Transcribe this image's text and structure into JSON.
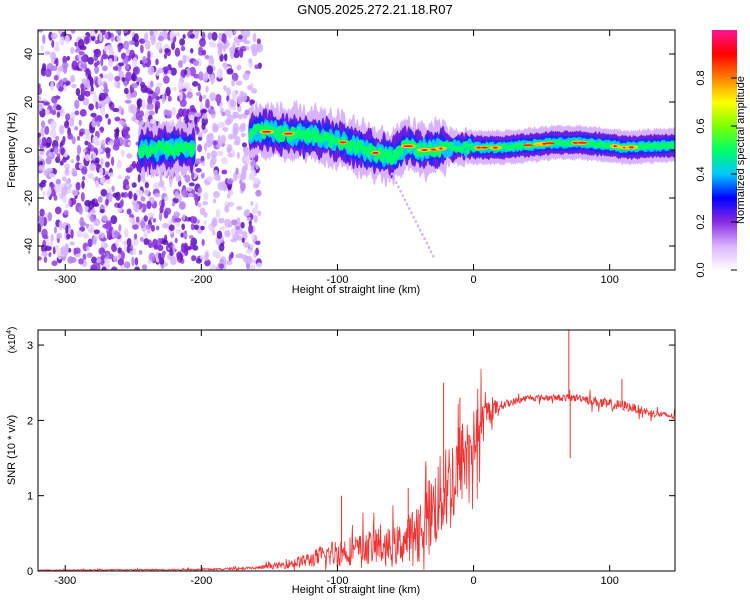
{
  "title": "GN05.2025.272.21.18.R07",
  "colors": {
    "snr_line": "#ee3333",
    "axis": "#000000",
    "noise_purple": "#7a1fd6",
    "background": "#ffffff"
  },
  "chart_data": [
    {
      "type": "heatmap",
      "name": "spectrogram",
      "xlabel": "Height of straight line (km)",
      "ylabel": "Frequency (Hz)",
      "xlim": [
        -320,
        148
      ],
      "ylim": [
        -50,
        50
      ],
      "x_ticks": [
        -300,
        -200,
        -100,
        0,
        100
      ],
      "x_tick_labels": [
        "-300",
        "-200",
        "-100",
        "0",
        "100"
      ],
      "y_ticks": [
        -40,
        -20,
        0,
        20,
        40
      ],
      "y_tick_labels": [
        "-40",
        "-20",
        "0",
        "20",
        "40"
      ],
      "noise_region_x": [
        -320,
        -157
      ],
      "signal_track": {
        "x": [
          -240,
          -220,
          -200,
          -160,
          -140,
          -120,
          -100,
          -80,
          -60,
          -50,
          -40,
          -30,
          -20,
          0,
          20,
          60,
          80,
          100,
          110,
          148
        ],
        "freq": [
          0,
          1,
          0,
          8,
          7,
          6,
          4,
          0,
          -3,
          2,
          0,
          0,
          1,
          1,
          1,
          3,
          3,
          2,
          1,
          2
        ]
      },
      "colorbar": {
        "label": "Normalized spectral amplitude",
        "range": [
          0.0,
          1.0
        ],
        "ticks": [
          0.0,
          0.2,
          0.4,
          0.6,
          0.8
        ],
        "tick_labels": [
          "0.0",
          "0.2",
          "0.4",
          "0.6",
          "0.8"
        ],
        "colormap": [
          "#ffffff",
          "#d9b3ff",
          "#8a2be2",
          "#0000ff",
          "#00c8ff",
          "#00ff66",
          "#7fff00",
          "#ffff00",
          "#ff8000",
          "#ff0000",
          "#ff1493"
        ]
      }
    },
    {
      "type": "line",
      "name": "snr",
      "xlabel": "Height of straight line (km)",
      "ylabel": "SNR (10 * v/v)",
      "scale_label": "(x10",
      "scale_exponent": "4",
      "scale_close": ")",
      "xlim": [
        -320,
        148
      ],
      "ylim": [
        0,
        3.2
      ],
      "x_ticks": [
        -300,
        -200,
        -100,
        0,
        100
      ],
      "x_tick_labels": [
        "-300",
        "-200",
        "-100",
        "0",
        "100"
      ],
      "y_ticks": [
        0,
        1,
        2,
        3
      ],
      "y_tick_labels": [
        "0",
        "1",
        "2",
        "3"
      ],
      "envelope": {
        "x": [
          -320,
          -200,
          -160,
          -140,
          -120,
          -100,
          -80,
          -70,
          -60,
          -50,
          -40,
          -30,
          -20,
          -15,
          -10,
          -5,
          0,
          5,
          10,
          20,
          30,
          40,
          50,
          60,
          70,
          80,
          90,
          100,
          110,
          120,
          130,
          148
        ],
        "mean": [
          0.01,
          0.02,
          0.04,
          0.08,
          0.15,
          0.25,
          0.3,
          0.35,
          0.3,
          0.4,
          0.6,
          0.8,
          1.1,
          1.2,
          1.4,
          1.6,
          1.7,
          1.9,
          2.1,
          2.2,
          2.25,
          2.3,
          2.3,
          2.3,
          2.3,
          2.3,
          2.25,
          2.2,
          2.2,
          2.15,
          2.1,
          2.05
        ],
        "spread": [
          0.005,
          0.01,
          0.02,
          0.05,
          0.1,
          0.2,
          0.2,
          0.3,
          0.25,
          0.3,
          0.4,
          0.55,
          0.6,
          0.7,
          0.6,
          0.5,
          0.45,
          0.35,
          0.2,
          0.06,
          0.05,
          0.04,
          0.04,
          0.04,
          0.05,
          0.05,
          0.07,
          0.08,
          0.07,
          0.06,
          0.05,
          0.04
        ]
      },
      "spikes": [
        {
          "x": -97,
          "y": 1.0
        },
        {
          "x": -48,
          "y": 1.1
        },
        {
          "x": -35,
          "y": 1.4
        },
        {
          "x": -22,
          "y": 2.5
        },
        {
          "x": -10,
          "y": 2.3
        },
        {
          "x": 70,
          "y": 3.2
        },
        {
          "x": 71,
          "y": 1.5
        },
        {
          "x": 109,
          "y": 2.55
        }
      ]
    }
  ]
}
